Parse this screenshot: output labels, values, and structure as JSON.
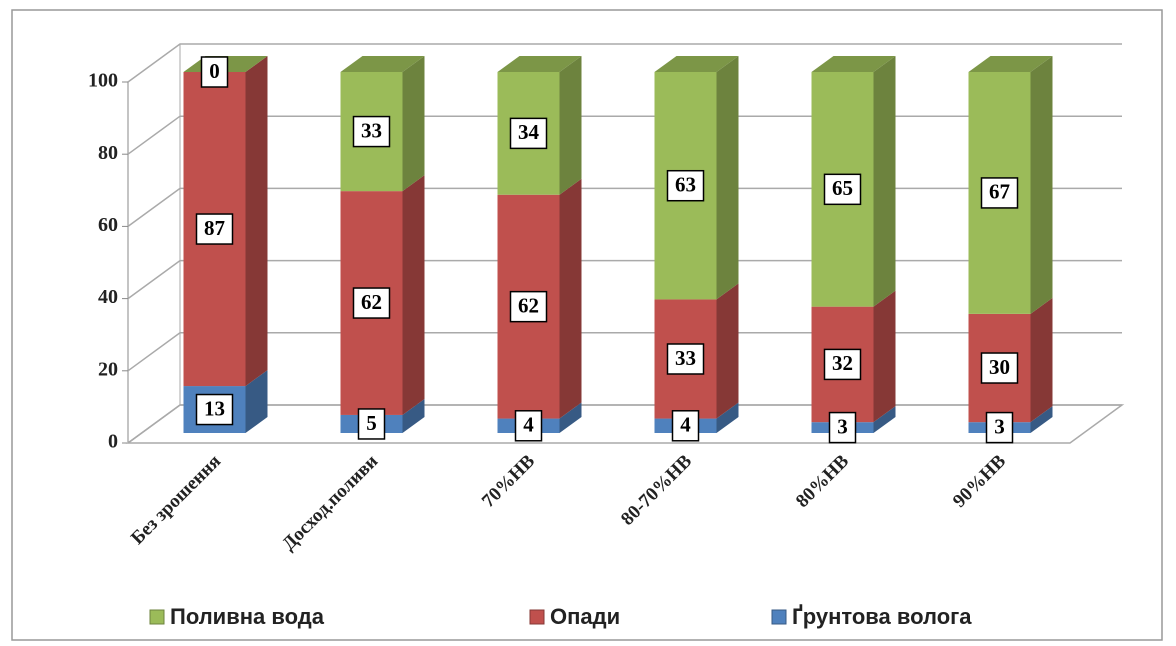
{
  "chart_data": {
    "type": "bar3d_stacked",
    "categories": [
      "Без зрошення",
      "Досход.поливи",
      "70%НВ",
      "80-70%НВ",
      "80%НВ",
      "90%НВ"
    ],
    "series": [
      {
        "name": "Поливна вода",
        "color": "#9bbb59",
        "values": [
          0,
          33,
          34,
          63,
          65,
          67
        ]
      },
      {
        "name": "Опади",
        "color": "#c0504d",
        "values": [
          87,
          62,
          62,
          33,
          32,
          30
        ]
      },
      {
        "name": "Ґрунтова волога",
        "color": "#4f81bd",
        "values": [
          13,
          5,
          4,
          4,
          3,
          3
        ]
      }
    ],
    "stack_order": "bottom-up-reverse",
    "ylim": [
      0,
      100
    ],
    "yticks": [
      0,
      20,
      40,
      60,
      80,
      100
    ],
    "grid": true,
    "legend": "bottom"
  }
}
